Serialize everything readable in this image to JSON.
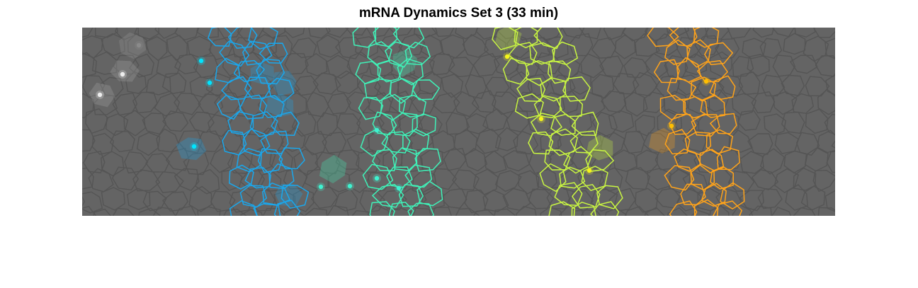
{
  "figure": {
    "title": "mRNA Dynamics Set 3 (33 min)"
  },
  "colors": {
    "background": "#646464",
    "cell_edge": "#555555",
    "stripe_1": "#1aa7ec",
    "stripe_2": "#3ff2b8",
    "stripe_3": "#c8f542",
    "stripe_4": "#ffa31a",
    "spot_1": "#00e5ff",
    "spot_2": "#3ff2d0",
    "spot_3": "#f5f51a",
    "spot_4": "#ffbf00",
    "spot_grey": "#eeeeee"
  },
  "stripes": [
    {
      "name": "stripe-1",
      "color_key": "stripe_1"
    },
    {
      "name": "stripe-2",
      "color_key": "stripe_2"
    },
    {
      "name": "stripe-3",
      "color_key": "stripe_3"
    },
    {
      "name": "stripe-4",
      "color_key": "stripe_4"
    }
  ]
}
